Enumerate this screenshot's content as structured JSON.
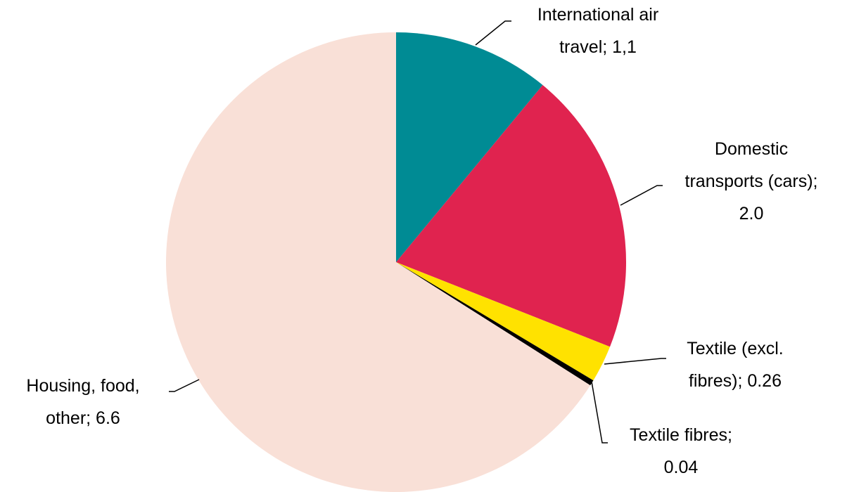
{
  "chart_data": {
    "type": "pie",
    "categories": [
      "International air travel; 1,1",
      "Domestic transports (cars); 2.0",
      "Textile (excl. fibres); 0.26",
      "Textile fibres; 0.04",
      "Housing, food, other; 6.6"
    ],
    "values": [
      1.1,
      2.0,
      0.26,
      0.04,
      6.6
    ],
    "colors": [
      "#008b94",
      "#e0234f",
      "#ffe200",
      "#000000",
      "#f9e0d7"
    ]
  }
}
